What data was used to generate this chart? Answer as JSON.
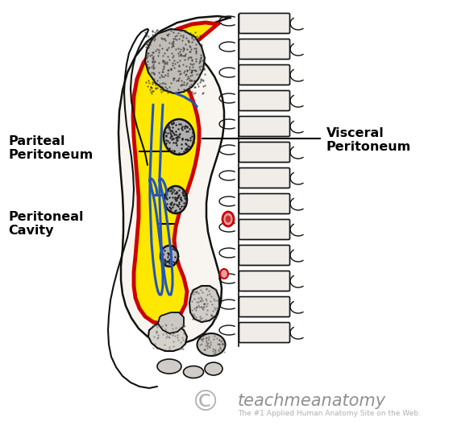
{
  "background_color": "#ffffff",
  "label_parietal": "Pariteal\nPeritoneum",
  "label_visceral": "Visceral\nPeritoneum",
  "label_cavity": "Peritoneal\nCavity",
  "watermark_main": "teachmeanatomy",
  "watermark_sub": "The #1 Applied Human Anatomy Site on the Web.",
  "yellow_fill": "#FFE800",
  "red_line": "#CC0000",
  "blue_line": "#2255BB",
  "outline_color": "#111111",
  "organ_gray": "#909090",
  "organ_dark": "#555555",
  "spine_fill": "#f0ede8",
  "body_fill": "#f8f5f0"
}
